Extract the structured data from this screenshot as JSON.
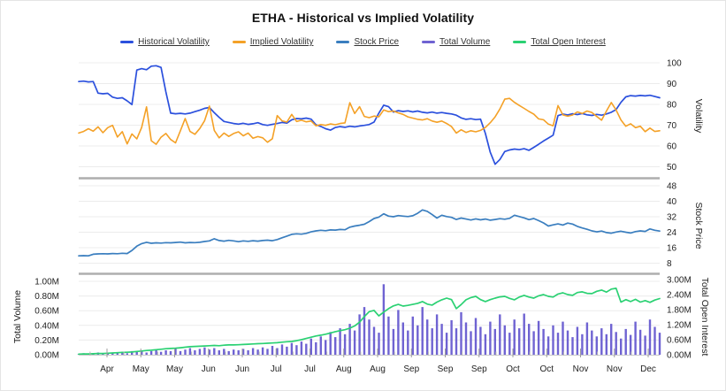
{
  "title": "ETHA - Historical vs Implied Volatility",
  "legend": [
    {
      "label": "Historical Volatility",
      "color": "#2b50dd"
    },
    {
      "label": "Implied Volatility",
      "color": "#f4a127"
    },
    {
      "label": "Stock Price",
      "color": "#3a7ebf"
    },
    {
      "label": "Total Volume",
      "color": "#6f63d2"
    },
    {
      "label": "Total Open Interest",
      "color": "#2bd173"
    }
  ],
  "x_axis": {
    "labels": [
      "Apr",
      "May",
      "May",
      "Jun",
      "Jun",
      "Jul",
      "Jul",
      "Aug",
      "Aug",
      "Sep",
      "Sep",
      "Sep",
      "Oct",
      "Oct",
      "Nov",
      "Nov",
      "Dec"
    ]
  },
  "chart_data": [
    {
      "type": "line",
      "panel": "volatility",
      "title": "ETHA - Historical vs Implied Volatility",
      "x": "trading days mid-Apr through mid-Dec (121 samples)",
      "ylabel": "Volatility",
      "ylim": [
        44,
        102
      ],
      "yticks": [
        100,
        90,
        80,
        70,
        60,
        50
      ],
      "grid": true,
      "legend_position": "top",
      "series": [
        {
          "name": "Historical Volatility",
          "color": "#2b50dd",
          "values": [
            91.0,
            91.2,
            90.8,
            91.0,
            85.4,
            85.1,
            85.3,
            83.5,
            82.9,
            83.2,
            81.7,
            79.9,
            96.5,
            97.2,
            96.7,
            98.4,
            98.6,
            97.8,
            86.0,
            75.8,
            75.5,
            75.7,
            75.4,
            75.8,
            76.5,
            77.2,
            78.1,
            78.5,
            76.0,
            73.8,
            71.8,
            71.3,
            70.8,
            70.5,
            70.9,
            70.4,
            70.7,
            71.2,
            70.3,
            69.9,
            70.4,
            70.8,
            71.3,
            71.0,
            72.6,
            73.2,
            73.0,
            73.4,
            72.9,
            70.2,
            69.4,
            68.3,
            67.6,
            68.9,
            69.3,
            69.0,
            69.5,
            69.2,
            69.6,
            69.9,
            70.3,
            71.5,
            75.8,
            79.6,
            78.9,
            76.3,
            77.0,
            76.6,
            76.9,
            76.4,
            76.8,
            76.2,
            75.9,
            76.3,
            75.8,
            76.1,
            75.7,
            75.4,
            74.8,
            73.5,
            72.8,
            73.1,
            72.7,
            72.9,
            66.0,
            57.0,
            51.2,
            53.5,
            57.3,
            58.1,
            58.5,
            58.2,
            58.7,
            57.9,
            59.3,
            60.8,
            62.4,
            63.8,
            65.2,
            74.6,
            75.3,
            74.9,
            75.5,
            75.1,
            75.6,
            75.0,
            74.7,
            75.2,
            74.8,
            75.4,
            76.2,
            77.5,
            81.0,
            83.6,
            84.2,
            84.0,
            84.3,
            84.1,
            84.4,
            83.8,
            83.2
          ]
        },
        {
          "name": "Implied Volatility",
          "color": "#f4a127",
          "values": [
            66.2,
            67.0,
            68.3,
            67.1,
            69.2,
            66.4,
            68.8,
            69.9,
            64.3,
            66.9,
            61.0,
            65.8,
            63.4,
            68.9,
            78.8,
            62.5,
            60.8,
            64.2,
            66.0,
            63.1,
            61.5,
            67.3,
            73.2,
            67.0,
            65.6,
            68.4,
            72.1,
            79.2,
            67.5,
            63.9,
            66.2,
            64.6,
            66.0,
            66.8,
            64.9,
            66.2,
            63.7,
            64.5,
            63.9,
            61.8,
            63.5,
            74.6,
            72.1,
            71.5,
            75.2,
            71.8,
            72.4,
            71.6,
            72.0,
            69.7,
            70.3,
            69.9,
            70.6,
            70.2,
            70.8,
            71.1,
            80.8,
            75.6,
            78.9,
            74.2,
            73.6,
            74.4,
            74.0,
            77.3,
            76.5,
            76.8,
            75.9,
            75.2,
            74.0,
            73.4,
            72.8,
            72.5,
            73.1,
            72.0,
            71.4,
            72.0,
            70.8,
            69.3,
            66.2,
            67.8,
            66.5,
            67.3,
            66.8,
            67.5,
            68.9,
            71.2,
            74.0,
            77.8,
            82.5,
            82.9,
            81.0,
            79.5,
            78.1,
            76.6,
            75.3,
            73.0,
            72.6,
            70.5,
            69.7,
            79.4,
            75.0,
            74.3,
            74.9,
            76.4,
            75.6,
            76.8,
            76.1,
            74.2,
            72.4,
            76.8,
            80.9,
            77.3,
            72.5,
            69.5,
            70.7,
            68.8,
            69.5,
            66.9,
            68.6,
            67.0,
            67.3
          ]
        }
      ]
    },
    {
      "type": "line",
      "panel": "stock_price",
      "ylabel": "Stock Price",
      "ylim": [
        2,
        52
      ],
      "yticks": [
        48,
        40,
        32,
        24,
        16,
        8
      ],
      "grid": true,
      "series": [
        {
          "name": "Stock Price",
          "color": "#3a7ebf",
          "values": [
            11.8,
            11.9,
            11.8,
            12.6,
            12.8,
            12.9,
            12.8,
            13.0,
            12.9,
            13.1,
            13.0,
            14.6,
            16.8,
            18.1,
            18.8,
            18.3,
            18.5,
            18.4,
            18.6,
            18.5,
            18.7,
            18.9,
            18.5,
            18.7,
            18.6,
            18.8,
            19.2,
            19.5,
            20.6,
            19.7,
            19.4,
            19.8,
            19.5,
            19.1,
            19.5,
            19.3,
            19.6,
            19.4,
            19.7,
            19.9,
            19.6,
            20.2,
            21.1,
            22.0,
            22.9,
            23.2,
            23.0,
            23.4,
            24.2,
            24.7,
            25.0,
            24.8,
            25.2,
            25.1,
            25.4,
            25.3,
            26.6,
            27.2,
            27.6,
            28.1,
            29.5,
            31.1,
            31.8,
            33.5,
            32.3,
            32.0,
            32.6,
            32.3,
            32.1,
            32.5,
            33.8,
            35.5,
            34.8,
            33.1,
            31.3,
            32.8,
            32.1,
            31.7,
            30.6,
            31.3,
            30.8,
            30.3,
            30.9,
            30.4,
            30.8,
            30.2,
            30.6,
            31.0,
            30.7,
            31.2,
            32.8,
            32.1,
            31.4,
            30.5,
            31.1,
            30.0,
            28.8,
            27.2,
            27.8,
            28.3,
            27.7,
            28.7,
            28.2,
            27.0,
            26.2,
            25.5,
            24.7,
            24.2,
            24.6,
            23.8,
            23.5,
            24.1,
            24.5,
            24.0,
            23.6,
            24.3,
            24.7,
            24.4,
            25.7,
            25.0,
            24.6
          ]
        }
      ]
    },
    {
      "type": "bar+line",
      "panel": "volume_open_interest",
      "ylabel_left": "Total Volume",
      "ylabel_right": "Total Open Interest",
      "ylim_left": [
        0,
        1.0
      ],
      "ylim_right": [
        0,
        3.0
      ],
      "yticks_left": [
        "1.00M",
        "0.80M",
        "0.60M",
        "0.40M",
        "0.20M",
        "0.00M"
      ],
      "yticks_right": [
        "3.00M",
        "2.40M",
        "1.80M",
        "1.20M",
        "0.60M",
        "0.00M"
      ],
      "grid": true,
      "series": [
        {
          "name": "Total Volume",
          "type": "bar",
          "axis": "left",
          "unit": "M",
          "color": "#6f63d2",
          "values": [
            0.01,
            0.02,
            0.01,
            0.02,
            0.03,
            0.01,
            0.02,
            0.03,
            0.02,
            0.04,
            0.02,
            0.05,
            0.04,
            0.06,
            0.03,
            0.05,
            0.07,
            0.04,
            0.06,
            0.05,
            0.08,
            0.05,
            0.07,
            0.09,
            0.06,
            0.08,
            0.1,
            0.07,
            0.09,
            0.06,
            0.08,
            0.05,
            0.07,
            0.06,
            0.08,
            0.06,
            0.09,
            0.07,
            0.1,
            0.08,
            0.12,
            0.09,
            0.14,
            0.11,
            0.16,
            0.13,
            0.18,
            0.15,
            0.22,
            0.17,
            0.25,
            0.2,
            0.31,
            0.24,
            0.36,
            0.28,
            0.42,
            0.33,
            0.55,
            0.65,
            0.48,
            0.38,
            0.3,
            0.96,
            0.52,
            0.35,
            0.61,
            0.44,
            0.33,
            0.52,
            0.4,
            0.65,
            0.48,
            0.36,
            0.55,
            0.42,
            0.3,
            0.47,
            0.36,
            0.58,
            0.44,
            0.32,
            0.5,
            0.38,
            0.28,
            0.45,
            0.35,
            0.55,
            0.4,
            0.3,
            0.48,
            0.36,
            0.56,
            0.42,
            0.32,
            0.46,
            0.35,
            0.25,
            0.4,
            0.3,
            0.45,
            0.33,
            0.24,
            0.38,
            0.28,
            0.44,
            0.33,
            0.25,
            0.36,
            0.28,
            0.42,
            0.31,
            0.22,
            0.35,
            0.27,
            0.45,
            0.34,
            0.26,
            0.48,
            0.38,
            0.3
          ]
        },
        {
          "name": "Total Open Interest",
          "type": "line",
          "axis": "right",
          "unit": "M",
          "color": "#2bd173",
          "values": [
            0.02,
            0.03,
            0.03,
            0.04,
            0.05,
            0.05,
            0.06,
            0.07,
            0.08,
            0.09,
            0.1,
            0.11,
            0.13,
            0.15,
            0.17,
            0.18,
            0.2,
            0.22,
            0.24,
            0.25,
            0.26,
            0.28,
            0.3,
            0.32,
            0.33,
            0.34,
            0.35,
            0.36,
            0.37,
            0.36,
            0.38,
            0.39,
            0.39,
            0.4,
            0.41,
            0.42,
            0.43,
            0.44,
            0.45,
            0.46,
            0.47,
            0.48,
            0.5,
            0.52,
            0.53,
            0.56,
            0.6,
            0.65,
            0.7,
            0.75,
            0.78,
            0.82,
            0.87,
            0.92,
            0.96,
            1.0,
            1.06,
            1.15,
            1.3,
            1.52,
            1.72,
            1.77,
            1.55,
            1.7,
            1.84,
            1.95,
            2.01,
            1.94,
            1.97,
            2.01,
            2.05,
            2.12,
            2.02,
            1.98,
            2.1,
            2.19,
            2.26,
            2.2,
            1.84,
            2.0,
            2.19,
            2.28,
            2.33,
            2.2,
            2.12,
            2.2,
            2.26,
            2.31,
            2.33,
            2.25,
            2.19,
            2.3,
            2.37,
            2.3,
            2.26,
            2.35,
            2.4,
            2.33,
            2.3,
            2.42,
            2.47,
            2.4,
            2.37,
            2.48,
            2.51,
            2.45,
            2.44,
            2.53,
            2.58,
            2.5,
            2.62,
            2.65,
            2.1,
            2.2,
            2.12,
            2.21,
            2.1,
            2.16,
            2.09,
            2.18,
            2.24
          ]
        }
      ],
      "xticklabels": [
        "Apr",
        "May",
        "May",
        "Jun",
        "Jun",
        "Jul",
        "Jul",
        "Aug",
        "Aug",
        "Sep",
        "Sep",
        "Sep",
        "Oct",
        "Oct",
        "Nov",
        "Nov",
        "Dec"
      ]
    }
  ]
}
